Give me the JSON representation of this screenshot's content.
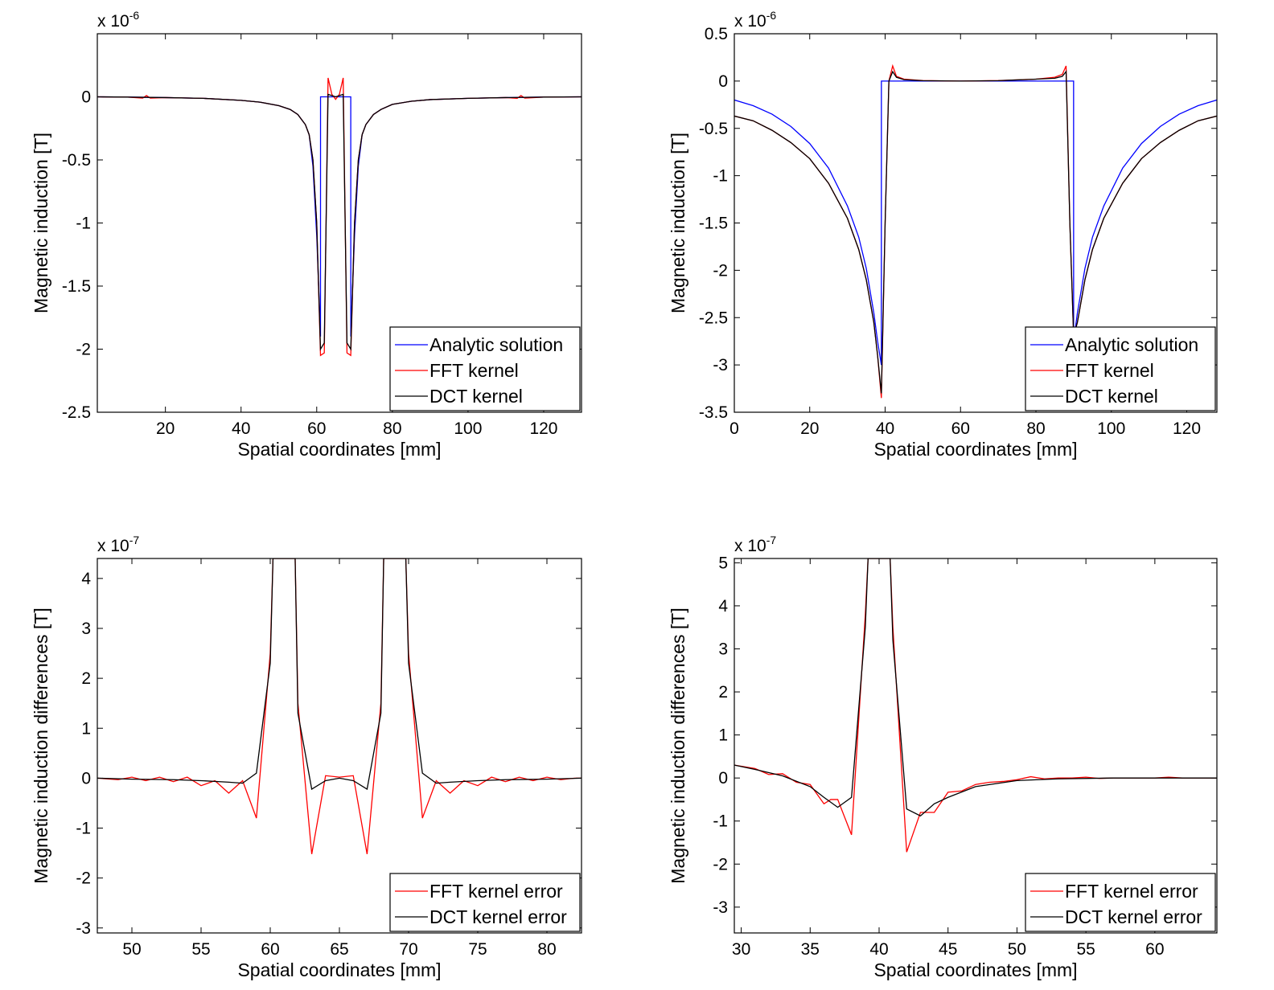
{
  "chart_data": [
    {
      "type": "line",
      "xlabel": "Spatial coordinates [mm]",
      "ylabel": "Magnetic induction [T]",
      "y_multiplier": "x 10",
      "y_exponent": "-6",
      "xlim": [
        2,
        130
      ],
      "ylim": [
        -2.5,
        0.5
      ],
      "xticks": [
        20,
        40,
        60,
        80,
        100,
        120
      ],
      "xtick_labels": [
        "20",
        "40",
        "60",
        "80",
        "100",
        "120"
      ],
      "yticks": [
        0,
        -0.5,
        -1,
        -1.5,
        -2,
        -2.5
      ],
      "ytick_labels": [
        "0",
        "-0.5",
        "-1",
        "-1.5",
        "-2",
        "-2.5"
      ],
      "legend_position": "bottom-right",
      "series": [
        {
          "name": "Analytic solution",
          "color": "#0000ff",
          "x": [
            2,
            10,
            20,
            30,
            40,
            45,
            50,
            53,
            55,
            57,
            58,
            59,
            60,
            61,
            61.01,
            69,
            69.01,
            70,
            71,
            72,
            73,
            75,
            77,
            80,
            85,
            90,
            100,
            110,
            120,
            130
          ],
          "y": [
            0,
            -0.002,
            -0.006,
            -0.012,
            -0.028,
            -0.042,
            -0.07,
            -0.1,
            -0.14,
            -0.22,
            -0.3,
            -0.55,
            -1.1,
            -1.9,
            0,
            0,
            -1.9,
            -1.1,
            -0.55,
            -0.3,
            -0.22,
            -0.14,
            -0.1,
            -0.06,
            -0.035,
            -0.022,
            -0.012,
            -0.006,
            -0.002,
            0
          ]
        },
        {
          "name": "FFT kernel",
          "color": "#ff0000",
          "x": [
            2,
            10,
            14,
            15,
            16,
            20,
            30,
            40,
            45,
            50,
            53,
            55,
            57,
            58,
            59,
            60,
            61,
            62,
            63,
            64,
            65,
            66,
            67,
            68,
            69,
            70,
            71,
            72,
            73,
            75,
            77,
            80,
            85,
            90,
            100,
            110,
            113,
            114,
            115,
            120,
            130
          ],
          "y": [
            0,
            -0.002,
            -0.01,
            0.01,
            -0.01,
            -0.006,
            -0.012,
            -0.028,
            -0.042,
            -0.07,
            -0.1,
            -0.14,
            -0.22,
            -0.3,
            -0.5,
            -1.0,
            -2.05,
            -2.03,
            0.15,
            0.02,
            -0.02,
            0.02,
            0.15,
            -2.03,
            -2.05,
            -1.0,
            -0.5,
            -0.3,
            -0.22,
            -0.14,
            -0.1,
            -0.06,
            -0.035,
            -0.022,
            -0.012,
            -0.006,
            -0.012,
            0.01,
            -0.01,
            -0.002,
            0
          ]
        },
        {
          "name": "DCT kernel",
          "color": "#000000",
          "x": [
            2,
            10,
            20,
            30,
            40,
            45,
            50,
            53,
            55,
            57,
            58,
            59,
            60,
            61,
            62,
            63,
            65,
            67,
            68,
            69,
            70,
            71,
            72,
            73,
            75,
            77,
            80,
            85,
            90,
            100,
            110,
            120,
            130
          ],
          "y": [
            0,
            -0.002,
            -0.006,
            -0.012,
            -0.028,
            -0.042,
            -0.07,
            -0.1,
            -0.14,
            -0.22,
            -0.3,
            -0.5,
            -1.0,
            -2.0,
            -1.95,
            0.02,
            0,
            0.02,
            -1.95,
            -2.0,
            -1.0,
            -0.5,
            -0.3,
            -0.22,
            -0.14,
            -0.1,
            -0.06,
            -0.035,
            -0.022,
            -0.012,
            -0.006,
            -0.002,
            0
          ]
        }
      ]
    },
    {
      "type": "line",
      "xlabel": "Spatial coordinates [mm]",
      "ylabel": "Magnetic induction [T]",
      "y_multiplier": "x 10",
      "y_exponent": "-6",
      "xlim": [
        0,
        128
      ],
      "ylim": [
        -3.5,
        0.5
      ],
      "xticks": [
        0,
        20,
        40,
        60,
        80,
        100,
        120
      ],
      "xtick_labels": [
        "0",
        "20",
        "40",
        "60",
        "80",
        "100",
        "120"
      ],
      "yticks": [
        0.5,
        0,
        -0.5,
        -1,
        -1.5,
        -2,
        -2.5,
        -3,
        -3.5
      ],
      "ytick_labels": [
        "0.5",
        "0",
        "-0.5",
        "-1",
        "-1.5",
        "-2",
        "-2.5",
        "-3",
        "-3.5"
      ],
      "legend_position": "bottom-right",
      "series": [
        {
          "name": "Analytic solution",
          "color": "#0000ff",
          "x": [
            0,
            5,
            10,
            15,
            20,
            25,
            30,
            33,
            35,
            37,
            38,
            39,
            39.01,
            89.99,
            90,
            91,
            93,
            95,
            98,
            103,
            108,
            113,
            118,
            123,
            128
          ],
          "y": [
            -0.2,
            -0.26,
            -0.35,
            -0.48,
            -0.66,
            -0.92,
            -1.32,
            -1.65,
            -1.98,
            -2.45,
            -2.75,
            -3.0,
            0,
            0,
            -2.75,
            -2.45,
            -1.98,
            -1.65,
            -1.32,
            -0.92,
            -0.66,
            -0.48,
            -0.35,
            -0.26,
            -0.2
          ]
        },
        {
          "name": "FFT kernel",
          "color": "#ff0000",
          "x": [
            0,
            5,
            10,
            15,
            20,
            25,
            30,
            33,
            35,
            37,
            38,
            39,
            40,
            41,
            42,
            43,
            45,
            50,
            60,
            70,
            80,
            85,
            87,
            88,
            89,
            90,
            91,
            93,
            95,
            98,
            103,
            108,
            113,
            118,
            123,
            128
          ],
          "y": [
            -0.37,
            -0.42,
            -0.52,
            -0.65,
            -0.82,
            -1.08,
            -1.45,
            -1.78,
            -2.1,
            -2.55,
            -2.9,
            -3.35,
            -1.5,
            0.0,
            0.16,
            0.05,
            0.02,
            0.005,
            0,
            0.005,
            0.02,
            0.04,
            0.07,
            0.16,
            -1.5,
            -2.7,
            -2.55,
            -2.1,
            -1.78,
            -1.45,
            -1.08,
            -0.82,
            -0.65,
            -0.52,
            -0.42,
            -0.37
          ]
        },
        {
          "name": "DCT kernel",
          "color": "#000000",
          "x": [
            0,
            5,
            10,
            15,
            20,
            25,
            30,
            33,
            35,
            37,
            38,
            39,
            40,
            41,
            42,
            43,
            45,
            50,
            60,
            70,
            80,
            85,
            87,
            88,
            89,
            90,
            91,
            93,
            95,
            98,
            103,
            108,
            113,
            118,
            123,
            128
          ],
          "y": [
            -0.37,
            -0.42,
            -0.52,
            -0.65,
            -0.82,
            -1.08,
            -1.45,
            -1.78,
            -2.1,
            -2.55,
            -2.9,
            -3.3,
            -1.5,
            0.0,
            0.1,
            0.04,
            0.015,
            0.004,
            0,
            0.004,
            0.02,
            0.03,
            0.05,
            0.1,
            -1.5,
            -2.7,
            -2.55,
            -2.1,
            -1.78,
            -1.45,
            -1.08,
            -0.82,
            -0.65,
            -0.52,
            -0.42,
            -0.37
          ]
        }
      ]
    },
    {
      "type": "line",
      "xlabel": "Spatial coordinates [mm]",
      "ylabel": "Magnetic induction differences [T]",
      "y_multiplier": "x 10",
      "y_exponent": "-7",
      "xlim": [
        47.5,
        82.5
      ],
      "ylim": [
        -3.1,
        4.4
      ],
      "xticks": [
        50,
        55,
        60,
        65,
        70,
        75,
        80
      ],
      "xtick_labels": [
        "50",
        "55",
        "60",
        "65",
        "70",
        "75",
        "80"
      ],
      "yticks": [
        4,
        3,
        2,
        1,
        0,
        -1,
        -2,
        -3
      ],
      "ytick_labels": [
        "4",
        "3",
        "2",
        "1",
        "0",
        "-1",
        "-2",
        "-3"
      ],
      "legend_position": "bottom-right",
      "series": [
        {
          "name": "FFT kernel error",
          "color": "#ff0000",
          "x": [
            47.5,
            49,
            50,
            51,
            52,
            53,
            54,
            55,
            56,
            57,
            58,
            59,
            60,
            60.2,
            61.8,
            62,
            63,
            64,
            65,
            66,
            67,
            68,
            68.2,
            69.8,
            70,
            71,
            72,
            73,
            74,
            75,
            76,
            77,
            78,
            79,
            80,
            81,
            82,
            82.5
          ],
          "y": [
            0,
            -0.03,
            0.02,
            -0.05,
            0.02,
            -0.07,
            0.02,
            -0.15,
            -0.05,
            -0.3,
            -0.05,
            -0.8,
            2.5,
            4.4,
            4.4,
            1.5,
            -1.52,
            0.05,
            0.02,
            0.05,
            -1.52,
            1.5,
            4.4,
            4.4,
            2.5,
            -0.8,
            -0.05,
            -0.3,
            -0.05,
            -0.15,
            0.02,
            -0.07,
            0.02,
            -0.05,
            0.02,
            -0.03,
            0,
            0
          ]
        },
        {
          "name": "DCT kernel error",
          "color": "#000000",
          "x": [
            47.5,
            50,
            53,
            55,
            57,
            58,
            59,
            60,
            60.2,
            61.8,
            62,
            63,
            64,
            65,
            66,
            67,
            68,
            68.2,
            69.8,
            70,
            71,
            72,
            73,
            75,
            77,
            80,
            82.5
          ],
          "y": [
            0,
            -0.02,
            -0.03,
            -0.05,
            -0.08,
            -0.1,
            0.1,
            2.3,
            4.4,
            4.4,
            1.3,
            -0.22,
            -0.05,
            0,
            -0.05,
            -0.22,
            1.3,
            4.4,
            4.4,
            2.3,
            0.1,
            -0.1,
            -0.08,
            -0.05,
            -0.03,
            -0.02,
            0
          ]
        }
      ]
    },
    {
      "type": "line",
      "xlabel": "Spatial coordinates [mm]",
      "ylabel": "Magnetic induction differences [T]",
      "y_multiplier": "x 10",
      "y_exponent": "-7",
      "xlim": [
        29.5,
        64.5
      ],
      "ylim": [
        -3.6,
        5.1
      ],
      "xticks": [
        30,
        35,
        40,
        45,
        50,
        55,
        60
      ],
      "xtick_labels": [
        "30",
        "35",
        "40",
        "45",
        "50",
        "55",
        "60"
      ],
      "yticks": [
        5,
        4,
        3,
        2,
        1,
        0,
        -1,
        -2,
        -3
      ],
      "ytick_labels": [
        "5",
        "4",
        "3",
        "2",
        "1",
        "0",
        "-1",
        "-2",
        "-3"
      ],
      "legend_position": "bottom-right",
      "series": [
        {
          "name": "FFT kernel error",
          "color": "#ff0000",
          "x": [
            29.5,
            31,
            32,
            33,
            34,
            35,
            36,
            36.5,
            37,
            38,
            39,
            39.2,
            40.8,
            41,
            42,
            43,
            44,
            45,
            46,
            47,
            48,
            49,
            50,
            51,
            52,
            53,
            54,
            55,
            56,
            57,
            58,
            59,
            60,
            61,
            62,
            63,
            64.5
          ],
          "y": [
            0.3,
            0.22,
            0.08,
            0.1,
            -0.1,
            -0.15,
            -0.6,
            -0.5,
            -0.5,
            -1.32,
            3.8,
            5.1,
            5.1,
            3.5,
            -1.72,
            -0.8,
            -0.8,
            -0.33,
            -0.3,
            -0.15,
            -0.1,
            -0.08,
            -0.04,
            0.03,
            -0.02,
            0,
            0,
            0.02,
            -0.01,
            0,
            0,
            0,
            0,
            0.02,
            0,
            0,
            0
          ]
        },
        {
          "name": "DCT kernel error",
          "color": "#000000",
          "x": [
            29.5,
            31,
            33,
            35,
            36,
            37,
            38,
            39,
            39.2,
            40.8,
            41,
            42,
            43,
            44,
            45,
            47,
            50,
            53,
            57,
            60,
            64.5
          ],
          "y": [
            0.3,
            0.2,
            0.05,
            -0.2,
            -0.45,
            -0.68,
            -0.45,
            3.5,
            5.1,
            5.1,
            3.2,
            -0.72,
            -0.88,
            -0.6,
            -0.45,
            -0.2,
            -0.06,
            -0.02,
            0,
            0,
            0
          ]
        }
      ]
    }
  ]
}
